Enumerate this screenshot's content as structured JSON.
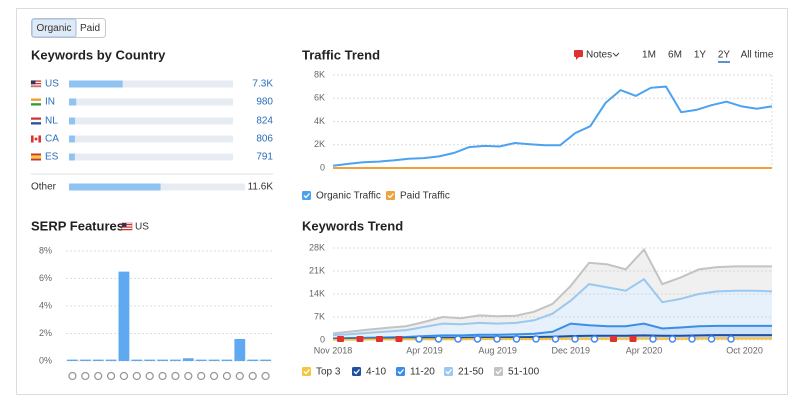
{
  "toggle": {
    "options": [
      "Organic",
      "Paid"
    ],
    "selected": 0
  },
  "controls": {
    "notes": "Notes",
    "ranges": [
      "1M",
      "6M",
      "1Y",
      "2Y",
      "All time"
    ],
    "selected": 3
  },
  "chart_data": [
    {
      "type": "hbar",
      "title": "Keywords by Country",
      "categories": [
        "US",
        "IN",
        "NL",
        "CA",
        "ES",
        "Other"
      ],
      "values": [
        7300,
        980,
        824,
        806,
        791,
        11600
      ],
      "value_labels": [
        "7.3K",
        "980",
        "824",
        "806",
        "791",
        "11.6K"
      ],
      "color": "#8ec3f2"
    },
    {
      "type": "bar",
      "title": "SERP Features",
      "subtitle": "US",
      "values": [
        0.1,
        0.1,
        0.1,
        0.1,
        6.5,
        0.1,
        0.1,
        0.1,
        0.1,
        0.2,
        0.1,
        0.1,
        0.1,
        1.6,
        0.1,
        0.1
      ],
      "color": "#5ea9ef",
      "ylim": [
        0,
        8
      ],
      "yticks": [
        {
          "value": 0,
          "label": "0%"
        },
        {
          "value": 2,
          "label": "2%"
        },
        {
          "value": 4,
          "label": "4%"
        },
        {
          "value": 6,
          "label": "6%"
        },
        {
          "value": 8,
          "label": "8%"
        }
      ],
      "grid": true
    },
    {
      "type": "line",
      "title": "Traffic Trend",
      "series": [
        {
          "name": "Organic Traffic",
          "color": "#4ba3ef",
          "values": [
            200,
            350,
            500,
            550,
            650,
            800,
            850,
            1000,
            1300,
            1800,
            1900,
            1850,
            2150,
            2050,
            1950,
            1950,
            3000,
            3600,
            5600,
            6700,
            6200,
            6900,
            7000,
            4800,
            5000,
            5400,
            5700,
            5300,
            5100,
            5300
          ]
        },
        {
          "name": "Paid Traffic",
          "color": "#f0a23a",
          "values": [
            0,
            0,
            0,
            0,
            0,
            0,
            0,
            0,
            0,
            0,
            0,
            0,
            0,
            0,
            0,
            0,
            0,
            0,
            0,
            0,
            0,
            0,
            0,
            0,
            0,
            0,
            0,
            0,
            0,
            0
          ]
        }
      ],
      "ylim": [
        0,
        8000
      ],
      "yticks": [
        0,
        {
          "value": 2000,
          "label": "2K"
        },
        {
          "value": 4000,
          "label": "4K"
        },
        {
          "value": 6000,
          "label": "6K"
        },
        {
          "value": 8000,
          "label": "8K"
        }
      ],
      "grid": true
    },
    {
      "type": "stacked_area",
      "title": "Keywords Trend",
      "x": [
        0,
        1,
        2,
        3,
        4,
        5,
        6,
        7,
        8,
        9,
        10,
        11,
        12,
        13,
        14,
        15,
        16,
        17,
        18,
        19,
        20,
        21,
        22,
        23,
        24
      ],
      "xlim": [
        0,
        24
      ],
      "xticks": [
        {
          "value": 0,
          "label": "Nov 2018"
        },
        {
          "value": 5,
          "label": "Apr 2019"
        },
        {
          "value": 9,
          "label": "Aug 2019"
        },
        {
          "value": 13,
          "label": "Dec 2019"
        },
        {
          "value": 17,
          "label": "Apr 2020"
        },
        {
          "value": 22.5,
          "label": "Oct 2020"
        }
      ],
      "series": [
        {
          "name": "Top 3",
          "color": "#f4c542",
          "values": [
            100,
            100,
            150,
            150,
            200,
            200,
            250,
            250,
            300,
            300,
            300,
            300,
            350,
            400,
            400,
            400,
            400,
            450,
            400,
            400,
            450,
            450,
            450,
            450,
            450
          ]
        },
        {
          "name": "4-10",
          "color": "#1f4fa0",
          "values": [
            200,
            250,
            250,
            300,
            300,
            400,
            450,
            450,
            500,
            500,
            550,
            600,
            650,
            800,
            900,
            900,
            900,
            950,
            900,
            900,
            950,
            1050,
            1050,
            1050,
            1050
          ]
        },
        {
          "name": "11-20",
          "color": "#3a8ee6",
          "values": [
            200,
            250,
            300,
            350,
            400,
            600,
            700,
            700,
            800,
            800,
            850,
            1000,
            1500,
            3800,
            3200,
            2900,
            2900,
            3600,
            2200,
            2500,
            2800,
            2800,
            2800,
            2800,
            2800
          ]
        },
        {
          "name": "21-50",
          "color": "#9cc8ee",
          "values": [
            1000,
            1200,
            1500,
            1800,
            2100,
            2800,
            3600,
            3400,
            3600,
            3400,
            3500,
            4100,
            5500,
            7000,
            12500,
            11800,
            10800,
            13500,
            8000,
            8700,
            9800,
            10500,
            10700,
            10700,
            10500
          ]
        },
        {
          "name": "51-100",
          "color": "#c3c3c3",
          "values": [
            500,
            800,
            1000,
            1100,
            1200,
            1500,
            2000,
            1800,
            2300,
            2200,
            2200,
            2600,
            3000,
            4500,
            6500,
            7000,
            6500,
            9000,
            5500,
            6500,
            7500,
            7400,
            7400,
            7400,
            7600
          ]
        }
      ],
      "ylim": [
        0,
        28000
      ],
      "yticks": [
        0,
        {
          "value": 7000,
          "label": "7K"
        },
        {
          "value": 14000,
          "label": "14K"
        },
        {
          "value": 21000,
          "label": "21K"
        },
        {
          "value": 28000,
          "label": "28K"
        }
      ],
      "grid": true
    }
  ]
}
